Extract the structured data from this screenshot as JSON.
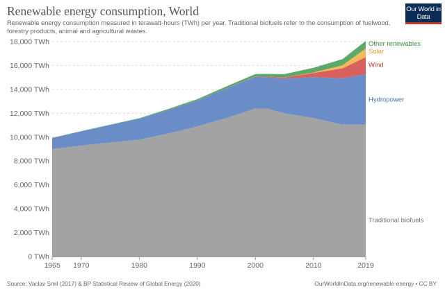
{
  "header": {
    "title": "Renewable energy consumption, World",
    "subtitle": "Renewable energy consumption measured in terawatt-hours (TWh) per year. Traditional biofuels refer to the consumption of fuelwood, forestry products, animal and agricultural wastes.",
    "logo": "Our World in Data"
  },
  "footer": {
    "source": "Source: Vaclav Smil (2017) & BP Statistical Review of Global Energy (2020)",
    "credit": "OurWorldInData.org/renewable-energy • CC BY"
  },
  "chart_data": {
    "type": "area",
    "stacked": true,
    "title": "Renewable energy consumption, World",
    "xlim": [
      1965,
      2019
    ],
    "ylim": [
      0,
      18000
    ],
    "y_unit": "TWh",
    "grid": "horizontal dashed",
    "legend": "right, inline labels",
    "x_ticks": [
      1965,
      1970,
      1980,
      1990,
      2000,
      2010,
      2019
    ],
    "y_ticks": [
      "0 TWh",
      "2,000 TWh",
      "4,000 TWh",
      "6,000 TWh",
      "8,000 TWh",
      "10,000 TWh",
      "12,000 TWh",
      "14,000 TWh",
      "16,000 TWh",
      "18,000 TWh"
    ],
    "x": [
      1965,
      1970,
      1975,
      1980,
      1985,
      1990,
      1995,
      2000,
      2002,
      2005,
      2010,
      2015,
      2019
    ],
    "series": [
      {
        "name": "Traditional biofuels",
        "color": "#a3a3a3",
        "values": [
          9000,
          9300,
          9550,
          9800,
          10300,
          10900,
          11600,
          12400,
          12400,
          12000,
          11600,
          11050,
          11050
        ]
      },
      {
        "name": "Hydropower",
        "color": "#6a8cc7",
        "values": [
          920,
          1180,
          1470,
          1740,
          1980,
          2160,
          2480,
          2650,
          2620,
          2900,
          3430,
          3880,
          4220
        ]
      },
      {
        "name": "Wind",
        "color": "#d9605d",
        "values": [
          0,
          0,
          0,
          0,
          2,
          4,
          8,
          31,
          52,
          104,
          342,
          831,
          1430
        ]
      },
      {
        "name": "Solar",
        "color": "#f4b95a",
        "values": [
          0,
          0,
          0,
          0,
          0,
          0,
          0,
          1,
          2,
          4,
          34,
          256,
          724
        ]
      },
      {
        "name": "Other renewables",
        "color": "#5ea86a",
        "values": [
          20,
          25,
          30,
          45,
          80,
          120,
          160,
          200,
          220,
          270,
          400,
          520,
          630
        ]
      }
    ],
    "label_colors": {
      "Traditional biofuels": "#777777",
      "Hydropower": "#4c6fb3",
      "Wind": "#c0392b",
      "Solar": "#e79a1f",
      "Other renewables": "#3a8a3f"
    }
  }
}
